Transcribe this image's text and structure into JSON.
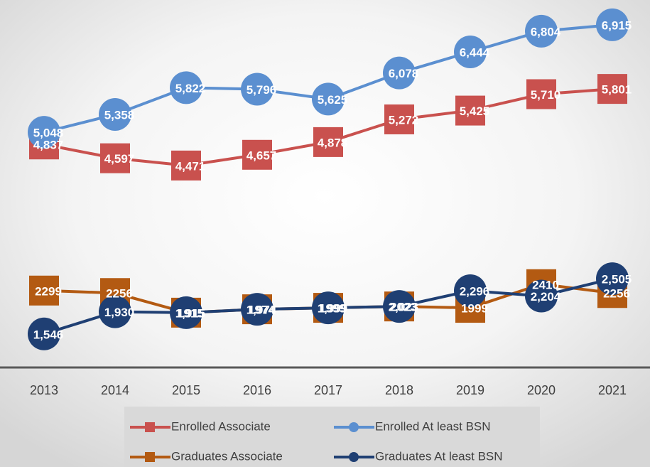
{
  "chart_data": {
    "type": "line",
    "categories": [
      "2013",
      "2014",
      "2015",
      "2016",
      "2017",
      "2018",
      "2019",
      "2020",
      "2021"
    ],
    "series": [
      {
        "name": "Enrolled Associate",
        "color": "#c9514e",
        "marker": "square",
        "values": [
          4837,
          4597,
          4471,
          4657,
          4878,
          5272,
          5425,
          5710,
          5801
        ],
        "value_labels": [
          "4,837",
          "4,597",
          "4,471",
          "4,657",
          "4,878",
          "5,272",
          "5,425",
          "5,710",
          "5,801"
        ]
      },
      {
        "name": "Enrolled At least BSN",
        "color": "#5b8fd0",
        "marker": "circle",
        "values": [
          5048,
          5358,
          5822,
          5796,
          5625,
          6078,
          6444,
          6804,
          6915
        ],
        "value_labels": [
          "5,048",
          "5,358",
          "5,822",
          "5,796",
          "5,625",
          "6,078",
          "6,444",
          "6,804",
          "6,915"
        ]
      },
      {
        "name": "Graduates Associate",
        "color": "#b35a12",
        "marker": "square",
        "values": [
          2299,
          2256,
          1915,
          1974,
          1999,
          2023,
          1999,
          2410,
          2256
        ]
      },
      {
        "name": "Graduates At least BSN",
        "color": "#1f3f73",
        "marker": "circle",
        "values": [
          1546,
          1930,
          1915,
          1974,
          1999,
          2023,
          2296,
          2204,
          2505
        ],
        "value_labels": [
          "1,546",
          "1,930",
          "1,915",
          "1,974",
          "1,999",
          "2,023",
          "2,296",
          "2,204",
          "2,505"
        ]
      }
    ]
  }
}
